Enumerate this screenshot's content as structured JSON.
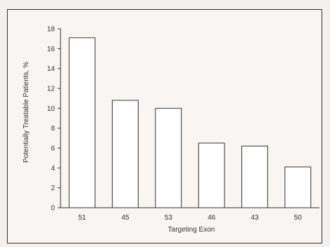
{
  "chart_data": {
    "type": "bar",
    "title": "",
    "xlabel": "Targeting Exon",
    "ylabel": "Potentially Treatable Patients, %",
    "categories": [
      "51",
      "45",
      "53",
      "46",
      "43",
      "50"
    ],
    "values": [
      17.1,
      10.8,
      10.0,
      6.5,
      6.2,
      4.1
    ],
    "ylim": [
      0,
      18
    ],
    "yticks": [
      "0",
      "2",
      "4",
      "6",
      "8",
      "10",
      "12",
      "14",
      "16",
      "18"
    ],
    "grid": false,
    "legend": "none",
    "colors": {
      "bar_fill": "#ffffff",
      "bar_stroke": "#333333",
      "axis": "#333333"
    }
  }
}
